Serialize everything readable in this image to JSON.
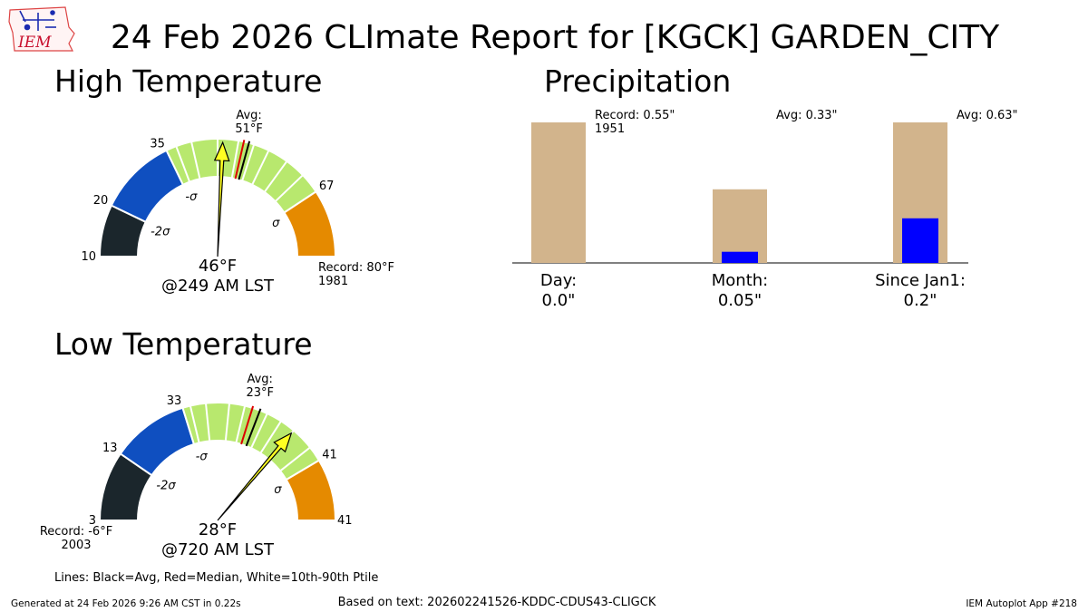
{
  "logo": {
    "text": "IEM"
  },
  "title": "24 Feb 2026 CLImate Report for [KGCK] GARDEN_CITY",
  "colors": {
    "band_dark": "#1b262c",
    "band_blue": "#0f4fc0",
    "band_green": "#b8e86e",
    "band_orange": "#e58a00",
    "needle": "#ffff22",
    "avg_line": "#000000",
    "median_line": "#dd0000",
    "precip_avg_bar": "#d2b48c",
    "precip_obs_bar": "#0000ff"
  },
  "chart_data": [
    {
      "type": "gauge",
      "title": "High Temperature",
      "units": "°F",
      "min": 10,
      "max": 80,
      "band_edges": [
        10,
        20,
        35,
        67,
        80
      ],
      "band_edge_labels": [
        "10",
        "20",
        "35",
        "67"
      ],
      "sigma_labels": [
        "-2σ",
        "-σ",
        "σ"
      ],
      "sigma_values": [
        20,
        35,
        67
      ],
      "percentile_lines": [
        37,
        40,
        45,
        49,
        52,
        55,
        59,
        63
      ],
      "avg": 51,
      "avg_label": "Avg:\n51°F",
      "median": 50,
      "observed": 46,
      "observed_label": "46°F",
      "time_label": "@249 AM LST",
      "record_value": 80,
      "record_label": "Record: 80°F\n1981",
      "max_label": ""
    },
    {
      "type": "gauge",
      "title": "Low Temperature",
      "units": "°F",
      "min": -6,
      "max": 41,
      "band_edges": [
        -6,
        3,
        13,
        33,
        41
      ],
      "band_edge_labels": [
        "3",
        "13",
        "33",
        "41"
      ],
      "sigma_labels": [
        "-2σ",
        "-σ",
        "σ"
      ],
      "sigma_values": [
        3,
        13,
        33
      ],
      "percentile_lines": [
        14,
        16,
        19,
        21,
        24,
        26,
        28,
        31
      ],
      "avg": 23,
      "avg_label": "Avg:\n23°F",
      "median": 22,
      "observed": 28,
      "observed_label": "28°F",
      "time_label": "@720 AM LST",
      "record_value": -6,
      "record_label": "Record: -6°F\n2003",
      "max_label": "41"
    },
    {
      "type": "bar",
      "title": "Precipitation",
      "units": "inches",
      "categories": [
        "Day:\n0.0\"",
        "Month:\n0.05\"",
        "Since Jan1:\n0.2\""
      ],
      "series": [
        {
          "name": "Average",
          "values": [
            0.55,
            0.33,
            0.63
          ]
        },
        {
          "name": "Observed",
          "values": [
            0.0,
            0.05,
            0.2
          ]
        }
      ],
      "annotations": [
        "Record: 0.55\"\n1951",
        "Avg: 0.33\"",
        "Avg: 0.63\""
      ]
    }
  ],
  "legend_note": "Lines: Black=Avg, Red=Median, White=10th-90th Ptile",
  "footer": {
    "generated": "Generated at 24 Feb 2026 9:26 AM CST in 0.22s",
    "based_on": "Based on text: 202602241526-KDDC-CDUS43-CLIGCK",
    "app": "IEM Autoplot App #218"
  }
}
